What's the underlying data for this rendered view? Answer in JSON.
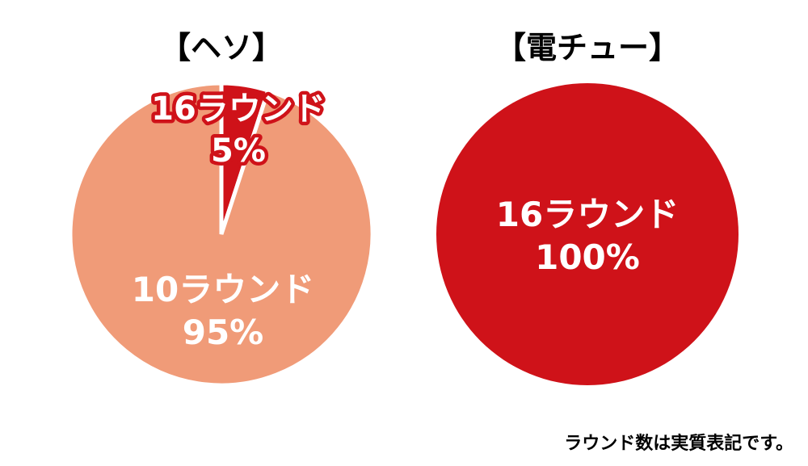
{
  "chart_data": [
    {
      "type": "pie",
      "title": "【ヘソ】",
      "slices": [
        {
          "label": "16ラウンド",
          "value": 5,
          "value_label": "5%",
          "color": "#cf1219"
        },
        {
          "label": "10ラウンド",
          "value": 95,
          "value_label": "95%",
          "color": "#f09b78"
        }
      ]
    },
    {
      "type": "pie",
      "title": "【電チュー】",
      "slices": [
        {
          "label": "16ラウンド",
          "value": 100,
          "value_label": "100%",
          "color": "#cf1219"
        }
      ]
    }
  ],
  "footnote": "ラウンド数は実質表記です。"
}
